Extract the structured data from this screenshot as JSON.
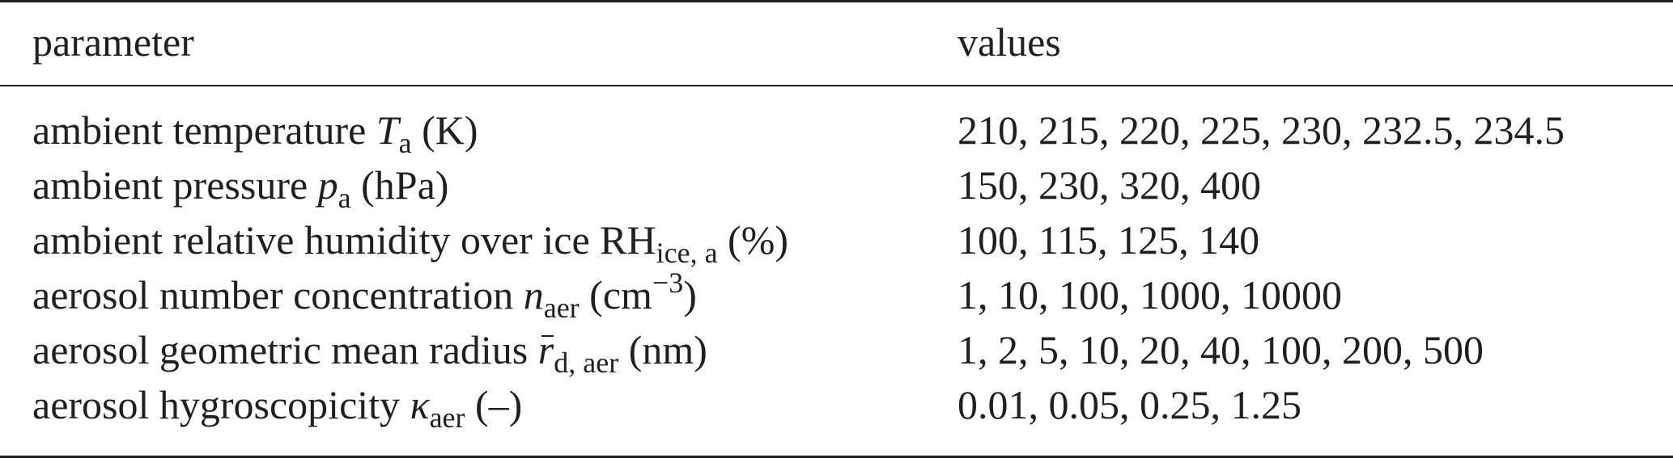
{
  "table": {
    "header": {
      "parameter": "parameter",
      "values": "values"
    },
    "rows": [
      {
        "label": "ambient temperature ",
        "symbol": "T",
        "subscript": "a",
        "unit": " (K)",
        "values": "210, 215, 220, 225, 230, 232.5, 234.5"
      },
      {
        "label": "ambient pressure ",
        "symbol": "p",
        "subscript": "a",
        "unit": " (hPa)",
        "values": "150, 230, 320, 400"
      },
      {
        "label": "ambient relative humidity over ice RH",
        "subscript": "ice, a",
        "unit": " (%)",
        "values": "100, 115, 125, 140"
      },
      {
        "label": "aerosol number concentration ",
        "symbol": "n",
        "subscript": "aer",
        "unit_open": " (cm",
        "superscript": "−3",
        "unit_close": ")",
        "values": "1, 10, 100, 1000, 10000"
      },
      {
        "label": "aerosol geometric mean radius ",
        "symbol": "r",
        "subscript": "d, aer",
        "unit": " (nm)",
        "values": "1, 2, 5, 10, 20, 40, 100, 200, 500"
      },
      {
        "label": "aerosol hygroscopicity ",
        "symbol": "κ",
        "subscript": "aer",
        "unit": " (–)",
        "values": "0.01, 0.05, 0.25, 1.25"
      }
    ]
  }
}
